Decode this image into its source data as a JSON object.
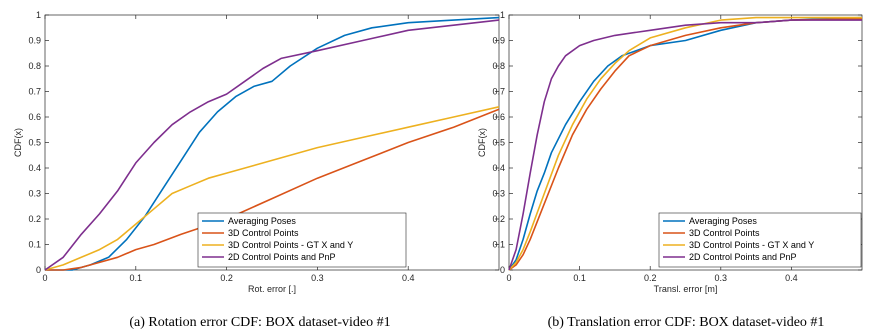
{
  "chart_data": [
    {
      "type": "line",
      "caption": "(a)  Rotation error CDF: BOX dataset-video #1",
      "xlabel": "Rot. error [.]",
      "ylabel": "CDF(x)",
      "xlim": [
        0,
        0.5
      ],
      "ylim": [
        0,
        1
      ],
      "xticks": [
        "0",
        "0.1",
        "0.2",
        "0.3",
        "0.4"
      ],
      "yticks": [
        "0",
        "0.1",
        "0.2",
        "0.3",
        "0.4",
        "0.5",
        "0.6",
        "0.7",
        "0.8",
        "0.9",
        "1"
      ],
      "legend_position": "bottom-right",
      "series": [
        {
          "name": "Averaging Poses",
          "color": "#0072BD",
          "x": [
            0.0,
            0.03,
            0.05,
            0.07,
            0.09,
            0.11,
            0.13,
            0.15,
            0.17,
            0.19,
            0.21,
            0.23,
            0.25,
            0.27,
            0.3,
            0.33,
            0.36,
            0.4,
            0.45,
            0.5
          ],
          "y": [
            0.0,
            0.0,
            0.02,
            0.05,
            0.12,
            0.21,
            0.32,
            0.43,
            0.54,
            0.62,
            0.68,
            0.72,
            0.74,
            0.8,
            0.87,
            0.92,
            0.95,
            0.97,
            0.98,
            0.99
          ]
        },
        {
          "name": "3D Control Points",
          "color": "#D95319",
          "x": [
            0.0,
            0.02,
            0.04,
            0.06,
            0.08,
            0.1,
            0.12,
            0.15,
            0.2,
            0.25,
            0.3,
            0.35,
            0.4,
            0.45,
            0.5
          ],
          "y": [
            0.0,
            0.0,
            0.01,
            0.03,
            0.05,
            0.08,
            0.1,
            0.14,
            0.2,
            0.28,
            0.36,
            0.43,
            0.5,
            0.56,
            0.63
          ]
        },
        {
          "name": "3D Control Points - GT X and Y",
          "color": "#EDB120",
          "x": [
            0.0,
            0.02,
            0.04,
            0.06,
            0.08,
            0.1,
            0.12,
            0.14,
            0.16,
            0.18,
            0.2,
            0.25,
            0.3,
            0.35,
            0.4,
            0.45,
            0.5
          ],
          "y": [
            0.0,
            0.02,
            0.05,
            0.08,
            0.12,
            0.18,
            0.24,
            0.3,
            0.33,
            0.36,
            0.38,
            0.43,
            0.48,
            0.52,
            0.56,
            0.6,
            0.64
          ]
        },
        {
          "name": "2D Control Points and PnP",
          "color": "#7E2F8E",
          "x": [
            0.0,
            0.02,
            0.04,
            0.06,
            0.08,
            0.1,
            0.12,
            0.14,
            0.16,
            0.18,
            0.2,
            0.22,
            0.24,
            0.26,
            0.3,
            0.35,
            0.4,
            0.45,
            0.5
          ],
          "y": [
            0.0,
            0.05,
            0.14,
            0.22,
            0.31,
            0.42,
            0.5,
            0.57,
            0.62,
            0.66,
            0.69,
            0.74,
            0.79,
            0.83,
            0.86,
            0.9,
            0.94,
            0.96,
            0.98
          ]
        }
      ]
    },
    {
      "type": "line",
      "caption": "(b)  Translation error CDF: BOX dataset-video #1",
      "xlabel": "Transl. error [m]",
      "ylabel": "CDF(x)",
      "xlim": [
        0,
        0.5
      ],
      "ylim": [
        0,
        1
      ],
      "xticks": [
        "0",
        "0.1",
        "0.2",
        "0.3",
        "0.4"
      ],
      "yticks": [
        "0",
        "0.1",
        "0.2",
        "0.3",
        "0.4",
        "0.5",
        "0.6",
        "0.7",
        "0.8",
        "0.9",
        "1"
      ],
      "legend_position": "bottom-right",
      "series": [
        {
          "name": "Averaging Poses",
          "color": "#0072BD",
          "x": [
            0.0,
            0.01,
            0.02,
            0.03,
            0.04,
            0.05,
            0.06,
            0.08,
            0.1,
            0.12,
            0.14,
            0.16,
            0.18,
            0.2,
            0.25,
            0.3,
            0.35,
            0.4,
            0.5
          ],
          "y": [
            0.0,
            0.04,
            0.12,
            0.22,
            0.31,
            0.38,
            0.46,
            0.57,
            0.66,
            0.74,
            0.8,
            0.84,
            0.86,
            0.88,
            0.9,
            0.94,
            0.97,
            0.98,
            0.99
          ]
        },
        {
          "name": "3D Control Points",
          "color": "#D95319",
          "x": [
            0.0,
            0.01,
            0.02,
            0.03,
            0.05,
            0.07,
            0.09,
            0.11,
            0.13,
            0.15,
            0.17,
            0.2,
            0.25,
            0.3,
            0.35,
            0.4,
            0.5
          ],
          "y": [
            0.0,
            0.02,
            0.06,
            0.12,
            0.26,
            0.4,
            0.53,
            0.63,
            0.71,
            0.78,
            0.84,
            0.88,
            0.92,
            0.95,
            0.97,
            0.98,
            0.985
          ]
        },
        {
          "name": "3D Control Points - GT X and Y",
          "color": "#EDB120",
          "x": [
            0.0,
            0.01,
            0.02,
            0.03,
            0.05,
            0.07,
            0.09,
            0.11,
            0.13,
            0.15,
            0.17,
            0.2,
            0.25,
            0.3,
            0.35,
            0.4,
            0.5
          ],
          "y": [
            0.0,
            0.03,
            0.08,
            0.15,
            0.3,
            0.45,
            0.57,
            0.67,
            0.75,
            0.81,
            0.86,
            0.91,
            0.95,
            0.98,
            0.99,
            0.99,
            0.99
          ]
        },
        {
          "name": "2D Control Points and PnP",
          "color": "#7E2F8E",
          "x": [
            0.0,
            0.01,
            0.02,
            0.03,
            0.04,
            0.05,
            0.06,
            0.07,
            0.08,
            0.1,
            0.12,
            0.15,
            0.2,
            0.25,
            0.3,
            0.35,
            0.4,
            0.5
          ],
          "y": [
            0.0,
            0.08,
            0.22,
            0.38,
            0.53,
            0.66,
            0.75,
            0.8,
            0.84,
            0.88,
            0.9,
            0.92,
            0.94,
            0.96,
            0.97,
            0.97,
            0.98,
            0.98
          ]
        }
      ]
    }
  ]
}
